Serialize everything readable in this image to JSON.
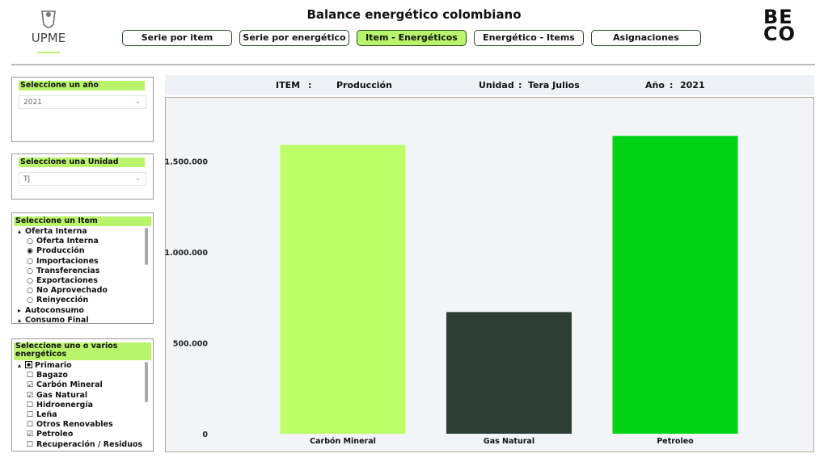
{
  "header": {
    "title": "Balance energético colombiano",
    "logo_left": "UPME",
    "logo_right_top": "BE",
    "logo_right_bottom": "CO"
  },
  "tabs": [
    {
      "label": "Serie por item"
    },
    {
      "label": "Serie por energético"
    },
    {
      "label": "Item - Energéticos",
      "active": true
    },
    {
      "label": "Energético - Items"
    },
    {
      "label": "Asignaciones"
    }
  ],
  "filters": {
    "year": {
      "label": "Seleccione un año",
      "value": "2021"
    },
    "unit": {
      "label": "Seleccione una Unidad",
      "value": "TJ"
    },
    "item": {
      "label": "Seleccione un Item",
      "tree": [
        {
          "label": "Oferta Interna",
          "kind": "node",
          "expanded": true
        },
        {
          "label": "Oferta Interna",
          "kind": "radio"
        },
        {
          "label": "Producción",
          "kind": "radio",
          "selected": true
        },
        {
          "label": "Importaciones",
          "kind": "radio"
        },
        {
          "label": "Transferencias",
          "kind": "radio"
        },
        {
          "label": "Exportaciones",
          "kind": "radio"
        },
        {
          "label": "No Aprovechado",
          "kind": "radio"
        },
        {
          "label": "Reinyección",
          "kind": "radio"
        },
        {
          "label": "Autoconsumo",
          "kind": "node",
          "expanded": false
        },
        {
          "label": "Consumo Final",
          "kind": "node",
          "expanded": true
        }
      ]
    },
    "energeticos": {
      "label": "Seleccione uno o varios energéticos",
      "tree": [
        {
          "label": "Primario",
          "kind": "node",
          "expanded": true,
          "partial": true
        },
        {
          "label": "Bagazo",
          "kind": "check"
        },
        {
          "label": "Carbón Mineral",
          "kind": "check",
          "checked": true
        },
        {
          "label": "Gas Natural",
          "kind": "check",
          "checked": true
        },
        {
          "label": "Hidroenergía",
          "kind": "check"
        },
        {
          "label": "Leña",
          "kind": "check"
        },
        {
          "label": "Otros Renovables",
          "kind": "check"
        },
        {
          "label": "Petroleo",
          "kind": "check",
          "checked": true
        },
        {
          "label": "Recuperación / Residuos",
          "kind": "check"
        }
      ]
    }
  },
  "chart_header": {
    "item_label": "ITEM",
    "item_sep": ":",
    "item": "Producción",
    "unit_label": "Unidad",
    "unit_sep": ":",
    "unit": "Tera Julios",
    "year_label": "Año",
    "year_sep": ":",
    "year": "2021"
  },
  "chart_data": {
    "type": "bar",
    "categories": [
      "Carbón Mineral",
      "Gas Natural",
      "Petroleo"
    ],
    "values": [
      1590000,
      670000,
      1640000
    ],
    "colors": [
      "#bcff66",
      "#2c3e36",
      "#00d414"
    ],
    "ylim": [
      0,
      1850000
    ],
    "yticks": [
      0,
      {
        "value": 500000,
        "label": "500.000"
      },
      {
        "value": 1000000,
        "label": "1.000.000"
      },
      {
        "value": 1500000,
        "label": "1.500.000"
      }
    ],
    "grid": false
  }
}
